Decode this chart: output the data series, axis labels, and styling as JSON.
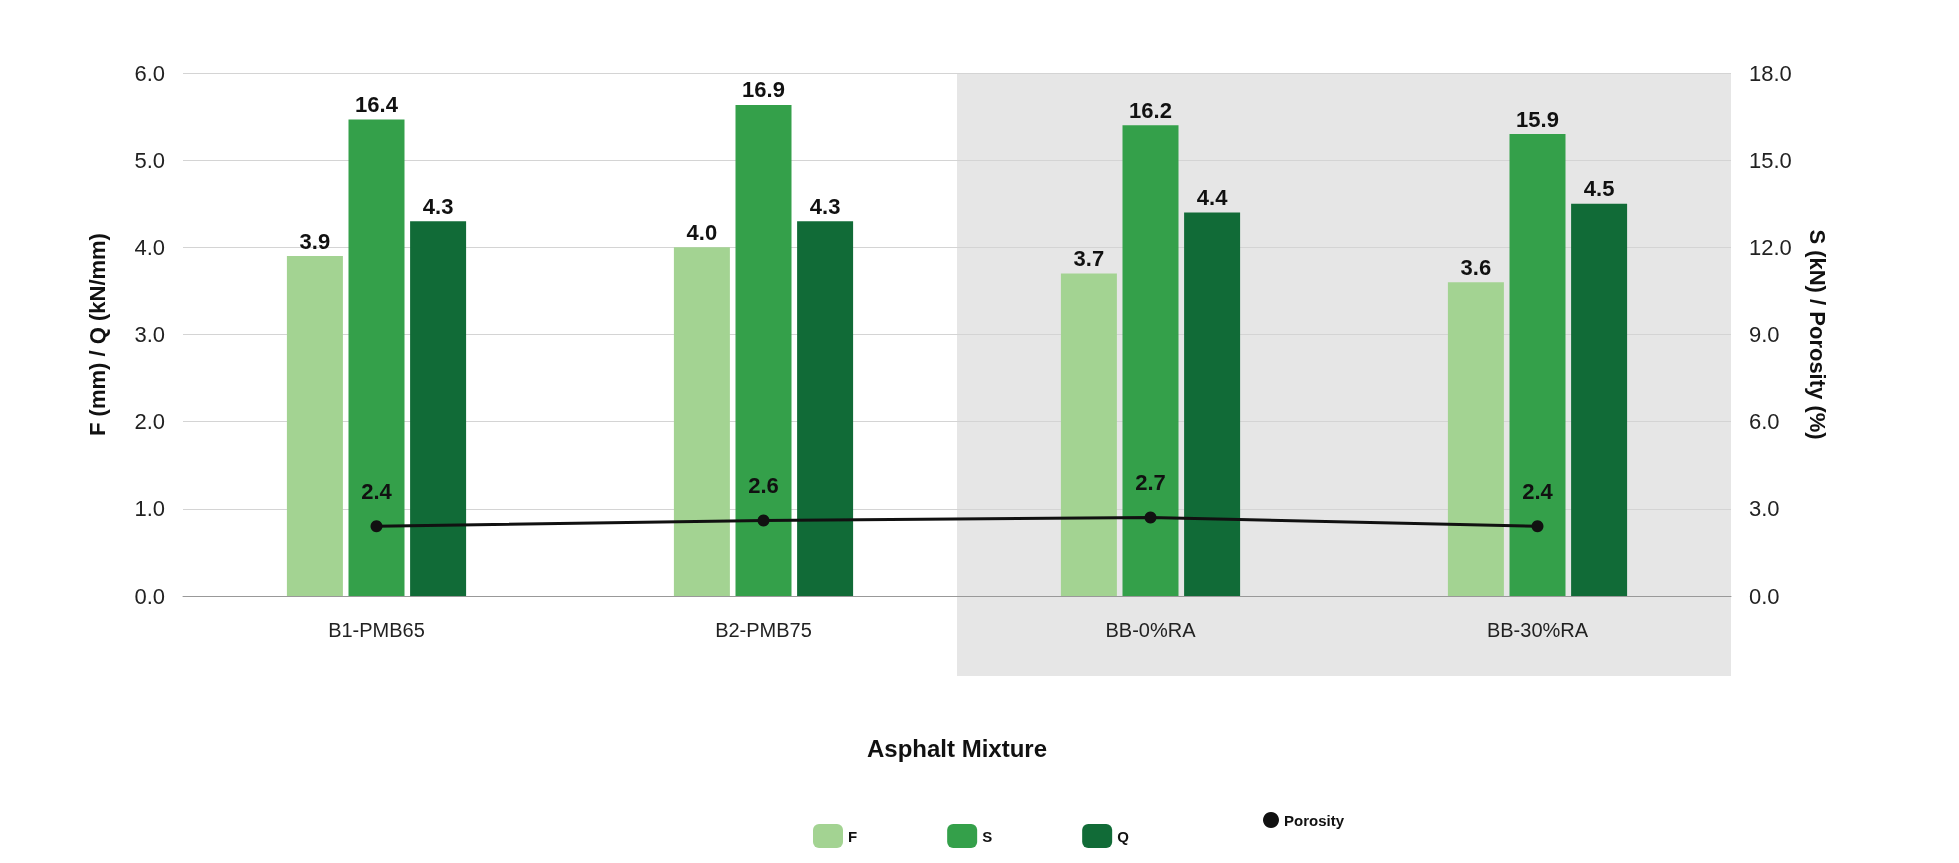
{
  "chart_data": {
    "type": "bar",
    "xlabel": "Asphalt Mixture",
    "ylabel": "F (mm) / Q (kN/mm)",
    "y2label": "S (kN) / Porosity (%)",
    "categories": [
      "B1-PMB65",
      "B2-PMB75",
      "BB-0%RA",
      "BB-30%RA"
    ],
    "series": [
      {
        "name": "F",
        "color": "#a3d392",
        "values": [
          3.9,
          4.0,
          3.7,
          3.6
        ],
        "value_labels": [
          "3.9",
          "4.0",
          "3.7",
          "3.6"
        ]
      },
      {
        "name": "S",
        "color": "#34a04a",
        "values": [
          16.4,
          16.9,
          16.2,
          15.9
        ],
        "axis": "y2",
        "value_labels": [
          "16.4",
          "16.9",
          "16.2",
          "15.9"
        ]
      },
      {
        "name": "Q",
        "color": "#116b37",
        "values": [
          4.3,
          4.3,
          4.4,
          4.5
        ],
        "value_labels": [
          "4.3",
          "4.3",
          "4.4",
          "4.5"
        ]
      },
      {
        "name": "Porosity",
        "type": "line",
        "color": "#111111",
        "axis": "y2",
        "marker": "circle",
        "values": [
          2.4,
          2.6,
          2.7,
          2.4
        ],
        "value_labels": [
          "2.4",
          "2.6",
          "2.7",
          "2.4"
        ]
      }
    ],
    "ylim": [
      0,
      6
    ],
    "yticks": [
      {
        "value": 0,
        "label": "0.0"
      },
      {
        "value": 1,
        "label": "1.0"
      },
      {
        "value": 2,
        "label": "2.0"
      },
      {
        "value": 3,
        "label": "3.0"
      },
      {
        "value": 4,
        "label": "4.0"
      },
      {
        "value": 5,
        "label": "5.0"
      },
      {
        "value": 6,
        "label": "6.0"
      }
    ],
    "y2lim": [
      0,
      18
    ],
    "y2ticks": [
      {
        "value": 0,
        "label": "0.0"
      },
      {
        "value": 3,
        "label": "3.0"
      },
      {
        "value": 6,
        "label": "6.0"
      },
      {
        "value": 9,
        "label": "9.0"
      },
      {
        "value": 12,
        "label": "12.0"
      },
      {
        "value": 15,
        "label": "15.0"
      },
      {
        "value": 18,
        "label": "18.0"
      }
    ],
    "bands": [
      {
        "axis": "x",
        "from": "BB-0%RA",
        "to": "BB-30%RA",
        "color": "#e6e6e6"
      }
    ],
    "grid": "y",
    "legend": "bottom"
  }
}
